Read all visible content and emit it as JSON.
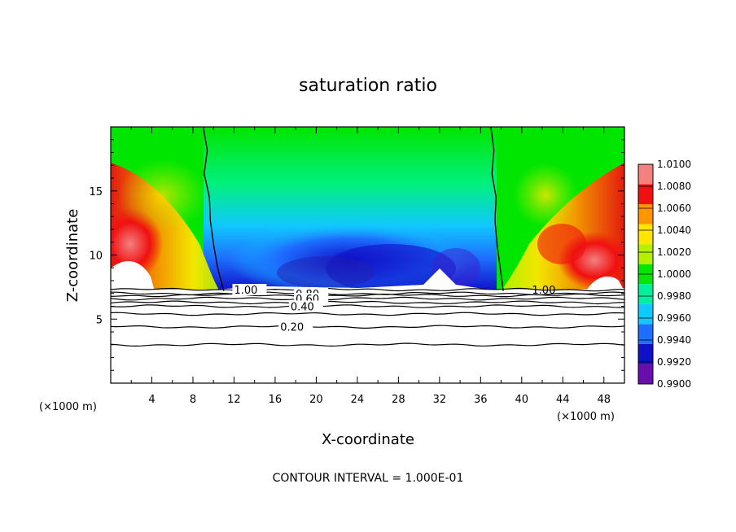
{
  "chart_data": {
    "type": "heatmap",
    "title": "saturation ratio",
    "xlabel": "X-coordinate",
    "ylabel": "Z-coordinate",
    "x_unit_label_left": "(×1000 m)",
    "x_unit_label_right": "(×1000 m)",
    "x_ticks": [
      "4",
      "8",
      "12",
      "16",
      "20",
      "24",
      "28",
      "32",
      "36",
      "40",
      "44",
      "48"
    ],
    "x_tick_values": [
      4,
      8,
      12,
      16,
      20,
      24,
      28,
      32,
      36,
      40,
      44,
      48
    ],
    "y_ticks": [
      "5",
      "10",
      "15"
    ],
    "y_tick_values": [
      5,
      10,
      15
    ],
    "xlim": [
      0,
      50
    ],
    "ylim": [
      0,
      20
    ],
    "colorbar": {
      "labels": [
        "0.9900",
        "0.9920",
        "0.9940",
        "0.9960",
        "0.9980",
        "1.0000",
        "1.0020",
        "1.0040",
        "1.0060",
        "1.0080",
        "1.0100"
      ],
      "values": [
        0.99,
        0.992,
        0.994,
        0.996,
        0.998,
        1.0,
        1.002,
        1.004,
        1.006,
        1.008,
        1.01
      ],
      "colors": [
        "#6a0dad",
        "#1010c8",
        "#1e6eff",
        "#11c8ff",
        "#00f0a0",
        "#00e600",
        "#b4f000",
        "#ffe600",
        "#ff9600",
        "#f01010",
        "#f48080"
      ]
    },
    "cloud_base_z": 7.2,
    "contour_lines": [
      {
        "label": "1.00",
        "z": 7.3
      },
      {
        "label": "0.80",
        "z": 7.0
      },
      {
        "label": "0.60",
        "z": 6.6
      },
      {
        "label": "0.40",
        "z": 6.0
      },
      {
        "label": "0.20",
        "z": 4.4
      },
      {
        "label": "",
        "z": 6.85
      },
      {
        "label": "",
        "z": 6.3
      },
      {
        "label": "",
        "z": 5.4
      },
      {
        "label": "",
        "z": 3.0
      }
    ],
    "sat_boundary_left_x": [
      9.0,
      9.4,
      9.1,
      9.6,
      9.7,
      10.0,
      10.4,
      11.0
    ],
    "sat_boundary_right_x": [
      37.0,
      37.3,
      37.1,
      37.5,
      37.4,
      37.6,
      37.9,
      38.2
    ],
    "footer": "CONTOUR INTERVAL = 1.000E-01"
  }
}
